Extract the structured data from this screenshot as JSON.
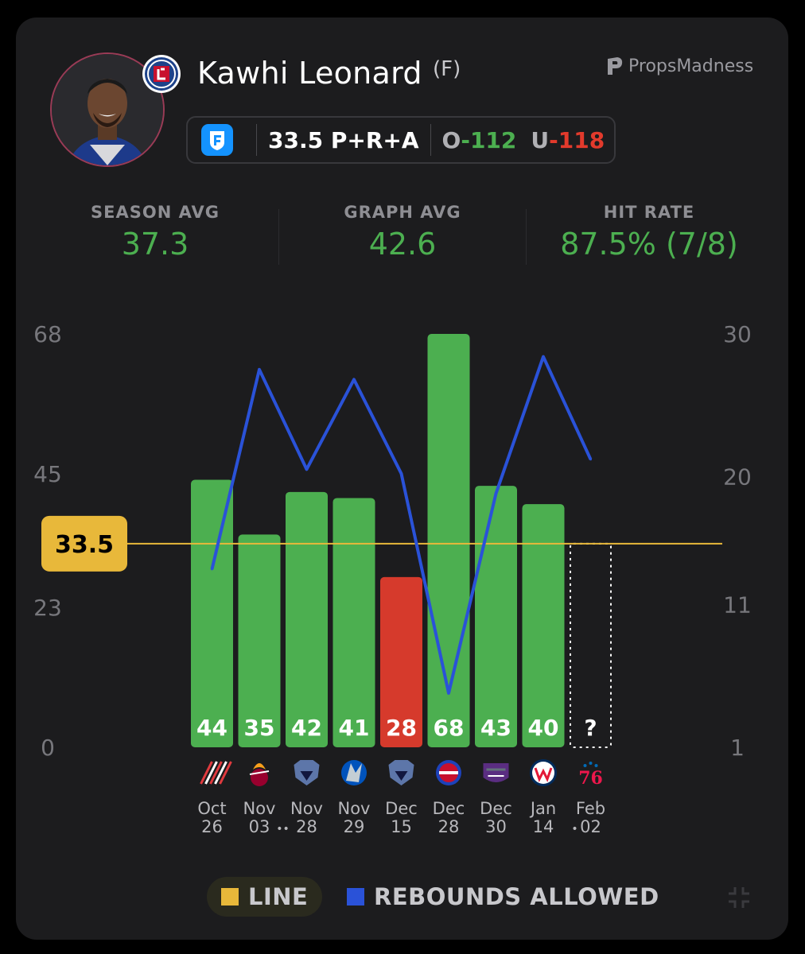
{
  "player": {
    "name": "Kawhi Leonard",
    "position": "(F)",
    "team_icon": "clippers-logo-icon",
    "photo_icon": "player-headshot"
  },
  "brand": {
    "name": "PropsMadness",
    "icon": "propsmadness-logo-icon"
  },
  "prop": {
    "book_icon": "fanduel-icon",
    "line_text": "33.5 P+R+A",
    "over_label": "O",
    "over_odds": "-112",
    "under_label": "U",
    "under_odds": "-118"
  },
  "stats": {
    "season_avg_label": "SEASON AVG",
    "season_avg_value": "37.3",
    "graph_avg_label": "GRAPH AVG",
    "graph_avg_value": "42.6",
    "hit_rate_label": "HIT RATE",
    "hit_rate_value": "87.5% (7/8)"
  },
  "legend": {
    "line_label": "LINE",
    "rebounds_label": "REBOUNDS ALLOWED"
  },
  "colors": {
    "hit": "#4caf50",
    "miss": "#d63a2c",
    "line": "#e8b83a",
    "rebounds": "#2a52d8",
    "axis_text": "#77777c"
  },
  "chart_data": {
    "type": "bar",
    "title": "",
    "line_value": 33.5,
    "line_label": "33.5",
    "left_axis": {
      "ticks": [
        "68",
        "45",
        "23",
        "0"
      ],
      "tick_values": [
        68,
        45,
        23,
        0
      ],
      "range": [
        0,
        68
      ]
    },
    "right_axis": {
      "ticks": [
        "30",
        "20",
        "11",
        "1"
      ],
      "tick_values": [
        30,
        20,
        11,
        1
      ],
      "range": [
        1,
        30
      ]
    },
    "games": [
      {
        "month": "Oct",
        "day": "26",
        "value": 44,
        "label": "44",
        "result": "hit",
        "opponent_icon": "blazers-logo-icon",
        "rebounds_allowed": 13.5,
        "dots": ""
      },
      {
        "month": "Nov",
        "day": "03",
        "value": 35,
        "label": "35",
        "result": "hit",
        "opponent_icon": "heat-logo-icon",
        "rebounds_allowed": 27.5,
        "dots": ""
      },
      {
        "month": "Nov",
        "day": "28",
        "value": 42,
        "label": "42",
        "result": "hit",
        "opponent_icon": "grizzlies-logo-icon",
        "rebounds_allowed": 20.5,
        "dots": "••"
      },
      {
        "month": "Nov",
        "day": "29",
        "value": 41,
        "label": "41",
        "result": "hit",
        "opponent_icon": "mavericks-logo-icon",
        "rebounds_allowed": 26.8,
        "dots": ""
      },
      {
        "month": "Dec",
        "day": "15",
        "value": 28,
        "label": "28",
        "result": "miss",
        "opponent_icon": "grizzlies-logo-icon",
        "rebounds_allowed": 20.2,
        "dots": ""
      },
      {
        "month": "Dec",
        "day": "28",
        "value": 68,
        "label": "68",
        "result": "hit",
        "opponent_icon": "pistons-logo-icon",
        "rebounds_allowed": 4.8,
        "dots": ""
      },
      {
        "month": "Dec",
        "day": "30",
        "value": 43,
        "label": "43",
        "result": "hit",
        "opponent_icon": "kings-logo-icon",
        "rebounds_allowed": 18.8,
        "dots": ""
      },
      {
        "month": "Jan",
        "day": "14",
        "value": 40,
        "label": "40",
        "result": "hit",
        "opponent_icon": "wizards-logo-icon",
        "rebounds_allowed": 28.4,
        "dots": ""
      },
      {
        "month": "Feb",
        "day": "02",
        "value": null,
        "label": "?",
        "result": "pending",
        "opponent_icon": "76ers-logo-icon",
        "rebounds_allowed": 21.2,
        "dots": "•"
      }
    ],
    "series": [
      {
        "name": "P+R+A",
        "axis": "left",
        "values": [
          44,
          35,
          42,
          41,
          28,
          68,
          43,
          40,
          null
        ]
      },
      {
        "name": "REBOUNDS ALLOWED",
        "axis": "right",
        "values": [
          13.5,
          27.5,
          20.5,
          26.8,
          20.2,
          4.8,
          18.8,
          28.4,
          21.2
        ]
      }
    ]
  }
}
